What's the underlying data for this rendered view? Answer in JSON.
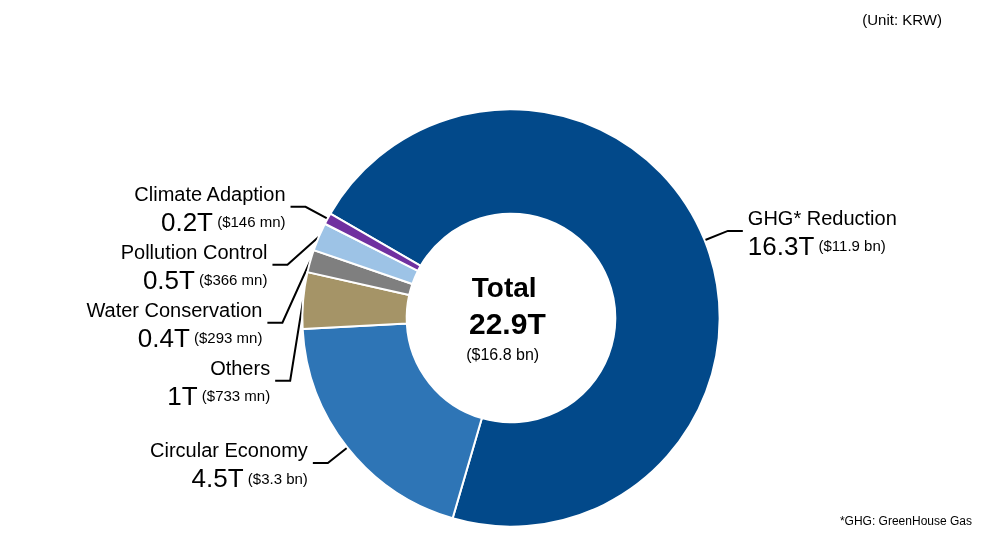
{
  "chart_data": {
    "type": "donut",
    "categories": [
      "GHG* Reduction",
      "Circular Economy",
      "Others",
      "Water Conservation",
      "Pollution Control",
      "Climate Adaption"
    ],
    "values": [
      16.3,
      4.5,
      1,
      0.4,
      0.5,
      0.2
    ],
    "colors": [
      "#02498a",
      "#2e75b6",
      "#a59467",
      "#7f7f7f",
      "#9dc3e6",
      "#7030a0"
    ],
    "value_labels": [
      "16.3T",
      "4.5T",
      "1T",
      "0.4T",
      "0.5T",
      "0.2T"
    ],
    "annotations": [
      "Total",
      "22.9T",
      "($16.8 bn)",
      "(Unit: KRW)",
      "*GHG: GreenHouse Gas",
      {
        "text": "($11.9 bn)",
        "x": "GHG* Reduction"
      },
      {
        "text": "($3.3 bn)",
        "x": "Circular Economy"
      },
      {
        "text": "($733 mn)",
        "x": "Others"
      },
      {
        "text": "($293 mn)",
        "x": "Water Conservation"
      },
      {
        "text": "($366 mn)",
        "x": "Pollution Control"
      },
      {
        "text": "($146 mn)",
        "x": "Climate Adaption"
      }
    ],
    "legend": false
  }
}
